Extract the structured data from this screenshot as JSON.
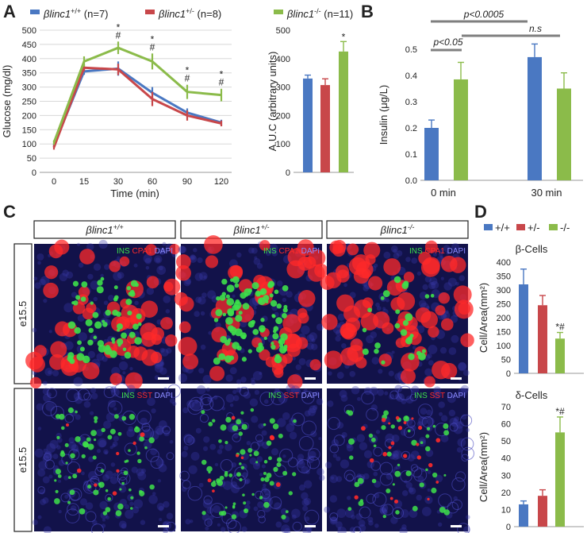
{
  "colors": {
    "wt": "#4a78c2",
    "het": "#c8474a",
    "ko": "#8bbb4a",
    "ins": "#3ee04a",
    "cpa1": "#ff2a2a",
    "sst": "#ff2a2a",
    "dapi": "#3a3aa8",
    "tissue_bg": "#12124a",
    "sig_bar": "#7f7f7f"
  },
  "panels": {
    "a": "A",
    "b": "B",
    "c": "C",
    "d": "D"
  },
  "panel_a": {
    "legend": [
      {
        "gene": "βlinc1",
        "sup": "+/+",
        "n": " (n=7)",
        "color_key": "wt"
      },
      {
        "gene": "βlinc1",
        "sup": "+/-",
        "n": " (n=8)",
        "color_key": "het"
      },
      {
        "gene": "βlinc1",
        "sup": "-/-",
        "n": " (n=11)",
        "color_key": "ko"
      }
    ]
  },
  "panel_b": {
    "sig": [
      {
        "text": "p<0.0005"
      },
      {
        "text": "p<0.05"
      },
      {
        "text": "n.s"
      }
    ]
  },
  "panel_c": {
    "genotypes": [
      {
        "gene": "βlinc1",
        "sup": "+/+"
      },
      {
        "gene": "βlinc1",
        "sup": "+/-"
      },
      {
        "gene": "βlinc1",
        "sup": "-/-"
      }
    ],
    "row_label": "e15.5",
    "stain_row1": {
      "a": "INS",
      "b": "CPA1",
      "c": "DAPI"
    },
    "stain_row2": {
      "a": "INS",
      "b": "SST",
      "c": "DAPI"
    }
  },
  "panel_d": {
    "legend": [
      {
        "label": "+/+",
        "color_key": "wt"
      },
      {
        "label": "+/-",
        "color_key": "het"
      },
      {
        "label": "-/-",
        "color_key": "ko"
      }
    ],
    "subtitles": [
      "β-Cells",
      "δ-Cells"
    ]
  },
  "chart_data": [
    {
      "id": "a_glucose",
      "type": "line",
      "x": [
        0,
        15,
        30,
        60,
        90,
        120
      ],
      "xlabel": "Time (min)",
      "ylabel": "Glucose (mg/dl)",
      "ylim": [
        0,
        500
      ],
      "yticks": [
        0,
        50,
        100,
        150,
        200,
        250,
        300,
        350,
        400,
        450,
        500
      ],
      "series": [
        {
          "name": "βlinc1+/+",
          "color_key": "wt",
          "values": [
            95,
            355,
            365,
            280,
            210,
            175
          ],
          "err": [
            8,
            12,
            25,
            20,
            15,
            10
          ]
        },
        {
          "name": "βlinc1+/-",
          "color_key": "het",
          "values": [
            88,
            368,
            362,
            258,
            200,
            172
          ],
          "err": [
            8,
            12,
            20,
            25,
            18,
            10
          ]
        },
        {
          "name": "βlinc1-/-",
          "color_key": "ko",
          "values": [
            105,
            390,
            438,
            390,
            283,
            272
          ],
          "err": [
            8,
            18,
            22,
            28,
            25,
            22
          ]
        }
      ],
      "annotations": [
        {
          "x": 30,
          "text": [
            "*",
            "#"
          ]
        },
        {
          "x": 60,
          "text": [
            "*",
            "#"
          ]
        },
        {
          "x": 90,
          "text": [
            "*",
            "#"
          ]
        },
        {
          "x": 120,
          "text": [
            "*",
            "#"
          ]
        }
      ]
    },
    {
      "id": "a_auc",
      "type": "bar",
      "categories": [
        "+/+",
        "+/-",
        "-/-"
      ],
      "color_keys": [
        "wt",
        "het",
        "ko"
      ],
      "values": [
        330,
        307,
        425
      ],
      "err": [
        12,
        22,
        35
      ],
      "ylabel": "A.U.C (arbitrary units)",
      "ylim": [
        0,
        500
      ],
      "yticks": [
        0,
        100,
        200,
        300,
        400,
        500
      ],
      "annotations": [
        {
          "index": 2,
          "text": "*"
        }
      ]
    },
    {
      "id": "b_insulin",
      "type": "bar",
      "categories": [
        "0 min",
        "30 min"
      ],
      "series": [
        {
          "color_key": "wt",
          "values": [
            0.2,
            0.47
          ],
          "err": [
            0.03,
            0.05
          ]
        },
        {
          "color_key": "ko",
          "values": [
            0.385,
            0.35
          ],
          "err": [
            0.065,
            0.06
          ]
        }
      ],
      "ylabel": "Insulin (μg/L)",
      "ylim": [
        0,
        0.5
      ],
      "yticks": [
        0,
        0.1,
        0.2,
        0.3,
        0.4,
        0.5
      ]
    },
    {
      "id": "d_beta",
      "type": "bar",
      "categories": [
        "+/+",
        "+/-",
        "-/-"
      ],
      "color_keys": [
        "wt",
        "het",
        "ko"
      ],
      "values": [
        320,
        245,
        125
      ],
      "err": [
        55,
        35,
        22
      ],
      "ylabel": "Cell/Area(mm²)",
      "ylim": [
        0,
        400
      ],
      "yticks": [
        0,
        50,
        100,
        150,
        200,
        250,
        300,
        350,
        400
      ],
      "annotations": [
        {
          "index": 2,
          "text": "*#"
        }
      ]
    },
    {
      "id": "d_delta",
      "type": "bar",
      "categories": [
        "+/+",
        "+/-",
        "-/-"
      ],
      "color_keys": [
        "wt",
        "het",
        "ko"
      ],
      "values": [
        13,
        18,
        55
      ],
      "err": [
        2,
        3.5,
        9
      ],
      "ylabel": "Cell/Area(mm²)",
      "ylim": [
        0,
        70
      ],
      "yticks": [
        0,
        10,
        20,
        30,
        40,
        50,
        60,
        70
      ],
      "annotations": [
        {
          "index": 2,
          "text": "*#"
        }
      ]
    }
  ]
}
